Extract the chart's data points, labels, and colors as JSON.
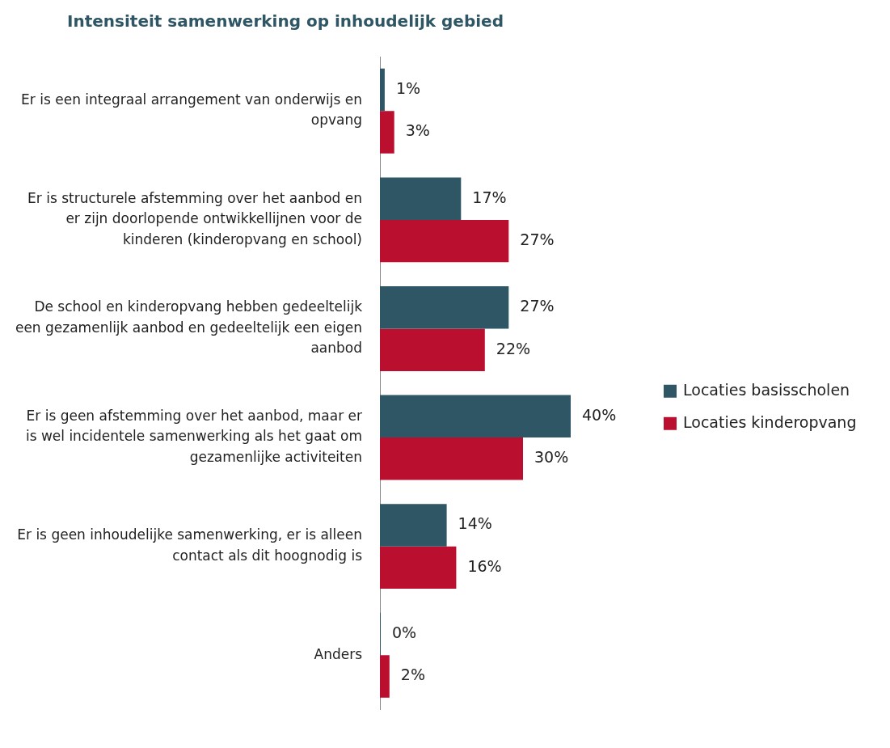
{
  "chart_data": {
    "type": "bar",
    "orientation": "horizontal",
    "title": "Intensiteit samenwerking op inhoudelijk gebied",
    "categories": [
      "Er is een integraal arrangement van onderwijs en opvang",
      "Er is structurele afstemming over het aanbod en er zijn doorlopende ontwikkellijnen voor de kinderen (kinderopvang en school)",
      "De school en kinderopvang hebben gedeeltelijk een gezamenlijk aanbod en gedeeltelijk een eigen aanbod",
      "Er is geen afstemming over het aanbod, maar er is wel incidentele samenwerking als het gaat om gezamenlijke activiteiten",
      "Er is geen inhoudelijke samenwerking, er is alleen contact als dit hoognodig is",
      "Anders"
    ],
    "series": [
      {
        "name": "Locaties basisscholen",
        "color": "#2f5665",
        "values": [
          1,
          17,
          27,
          40,
          14,
          0
        ],
        "value_labels": [
          "1%",
          "17%",
          "27%",
          "40%",
          "14%",
          "0%"
        ]
      },
      {
        "name": "Locaties kinderopvang",
        "color": "#bb0f2f",
        "values": [
          3,
          27,
          22,
          30,
          16,
          2
        ],
        "value_labels": [
          "3%",
          "27%",
          "22%",
          "30%",
          "16%",
          "2%"
        ]
      }
    ],
    "legend": "right",
    "tick_labels": "y"
  }
}
